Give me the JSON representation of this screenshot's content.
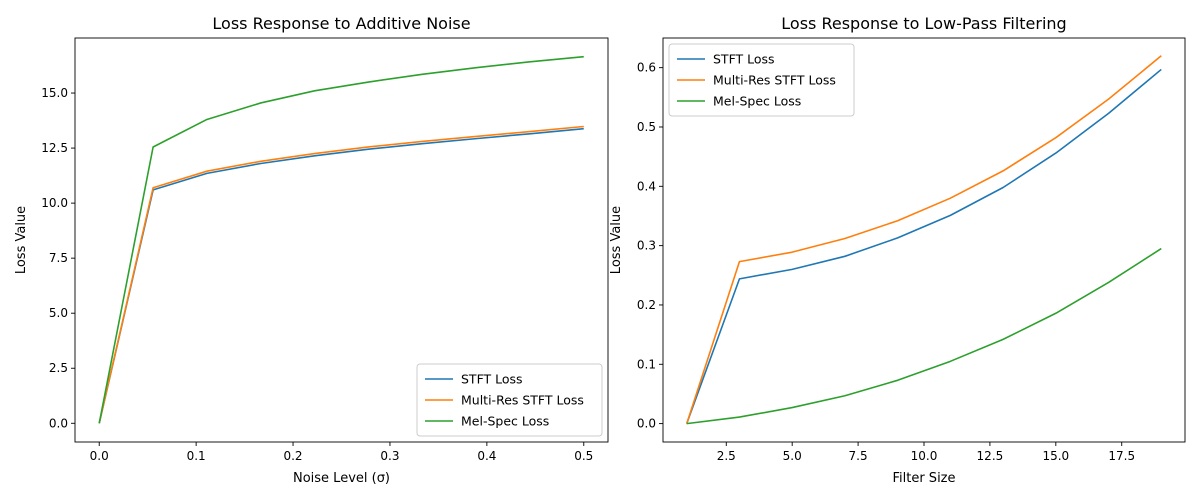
{
  "chart_data": [
    {
      "type": "line",
      "title": "Loss Response to Additive Noise",
      "xlabel": "Noise Level (σ)",
      "ylabel": "Loss Value",
      "xlim": [
        -0.025,
        0.525
      ],
      "ylim": [
        -0.85,
        17.5
      ],
      "xticks": [
        0.0,
        0.1,
        0.2,
        0.3,
        0.4,
        0.5
      ],
      "xtick_labels": [
        "0.0",
        "0.1",
        "0.2",
        "0.3",
        "0.4",
        "0.5"
      ],
      "yticks": [
        0,
        2.5,
        5,
        7.5,
        10,
        12.5,
        15
      ],
      "ytick_labels": [
        "0.0",
        "2.5",
        "5.0",
        "7.5",
        "10.0",
        "12.5",
        "15.0"
      ],
      "grid": false,
      "legend_position": "lower-right",
      "x": [
        0.0,
        0.0556,
        0.1111,
        0.1667,
        0.2222,
        0.2778,
        0.3333,
        0.3889,
        0.4444,
        0.5
      ],
      "series": [
        {
          "name": "STFT Loss",
          "color": "#1f77b4",
          "values": [
            0.0,
            10.6,
            11.35,
            11.8,
            12.15,
            12.45,
            12.7,
            12.93,
            13.15,
            13.38
          ]
        },
        {
          "name": "Multi-Res STFT Loss",
          "color": "#ff7f0e",
          "values": [
            0.0,
            10.7,
            11.45,
            11.9,
            12.25,
            12.55,
            12.8,
            13.03,
            13.25,
            13.48
          ]
        },
        {
          "name": "Mel-Spec Loss",
          "color": "#2ca02c",
          "values": [
            0.0,
            12.55,
            13.8,
            14.55,
            15.1,
            15.5,
            15.85,
            16.15,
            16.42,
            16.65
          ]
        }
      ]
    },
    {
      "type": "line",
      "title": "Loss Response to Low-Pass Filtering",
      "xlabel": "Filter Size",
      "ylabel": "Loss Value",
      "xlim": [
        0.1,
        19.9
      ],
      "ylim": [
        -0.031,
        0.65
      ],
      "xticks": [
        2.5,
        5.0,
        7.5,
        10.0,
        12.5,
        15.0,
        17.5
      ],
      "xtick_labels": [
        "2.5",
        "5.0",
        "7.5",
        "10.0",
        "12.5",
        "15.0",
        "17.5"
      ],
      "yticks": [
        0.0,
        0.1,
        0.2,
        0.3,
        0.4,
        0.5,
        0.6
      ],
      "ytick_labels": [
        "0.0",
        "0.1",
        "0.2",
        "0.3",
        "0.4",
        "0.5",
        "0.6"
      ],
      "grid": false,
      "legend_position": "upper-left",
      "x": [
        1,
        3,
        5,
        7,
        9,
        11,
        13,
        15,
        17,
        19
      ],
      "series": [
        {
          "name": "STFT Loss",
          "color": "#1f77b4",
          "values": [
            0.0,
            0.244,
            0.26,
            0.282,
            0.313,
            0.351,
            0.398,
            0.456,
            0.523,
            0.597
          ]
        },
        {
          "name": "Multi-Res STFT Loss",
          "color": "#ff7f0e",
          "values": [
            0.0,
            0.273,
            0.289,
            0.312,
            0.342,
            0.38,
            0.426,
            0.482,
            0.547,
            0.62
          ]
        },
        {
          "name": "Mel-Spec Loss",
          "color": "#2ca02c",
          "values": [
            0.0,
            0.011,
            0.027,
            0.047,
            0.073,
            0.105,
            0.142,
            0.186,
            0.238,
            0.295
          ]
        }
      ]
    }
  ]
}
